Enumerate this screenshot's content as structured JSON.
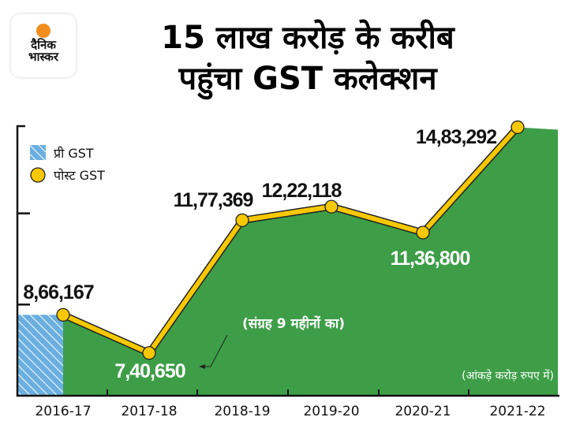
{
  "logo": {
    "line1": "दैनिक",
    "line2": "भास्कर"
  },
  "title": {
    "line1": "15 लाख करोड़ के करीब",
    "line2": "पहुंचा GST कलेक्शन"
  },
  "chart_data": {
    "type": "area",
    "title": "15 लाख करोड़ के करीब पहुंचा GST कलेक्शन",
    "categories": [
      "2016-17",
      "2017-18",
      "2018-19",
      "2019-20",
      "2020-21",
      "2021-22"
    ],
    "series": [
      {
        "name": "प्री GST",
        "values": [
          866167,
          null,
          null,
          null,
          null,
          null
        ],
        "color": "#6aafe0",
        "style": "hatched-bar"
      },
      {
        "name": "पोस्ट GST",
        "values": [
          866167,
          740650,
          1177369,
          1222118,
          1136800,
          1483292
        ],
        "color": "#f7c800",
        "fill": "#3d9e47"
      }
    ],
    "data_labels": [
      "8,66,167",
      "7,40,650",
      "11,77,369",
      "12,22,118",
      "11,36,800",
      "14,83,292"
    ],
    "annotation": "(संग्रह 9 महीनों का)",
    "unit_note": "(आंकड़े करोड़ रुपए में)",
    "ylim": [
      600000,
      1500000
    ],
    "y_ticks_labeled": false,
    "grid": false,
    "legend_position": "top-left"
  }
}
